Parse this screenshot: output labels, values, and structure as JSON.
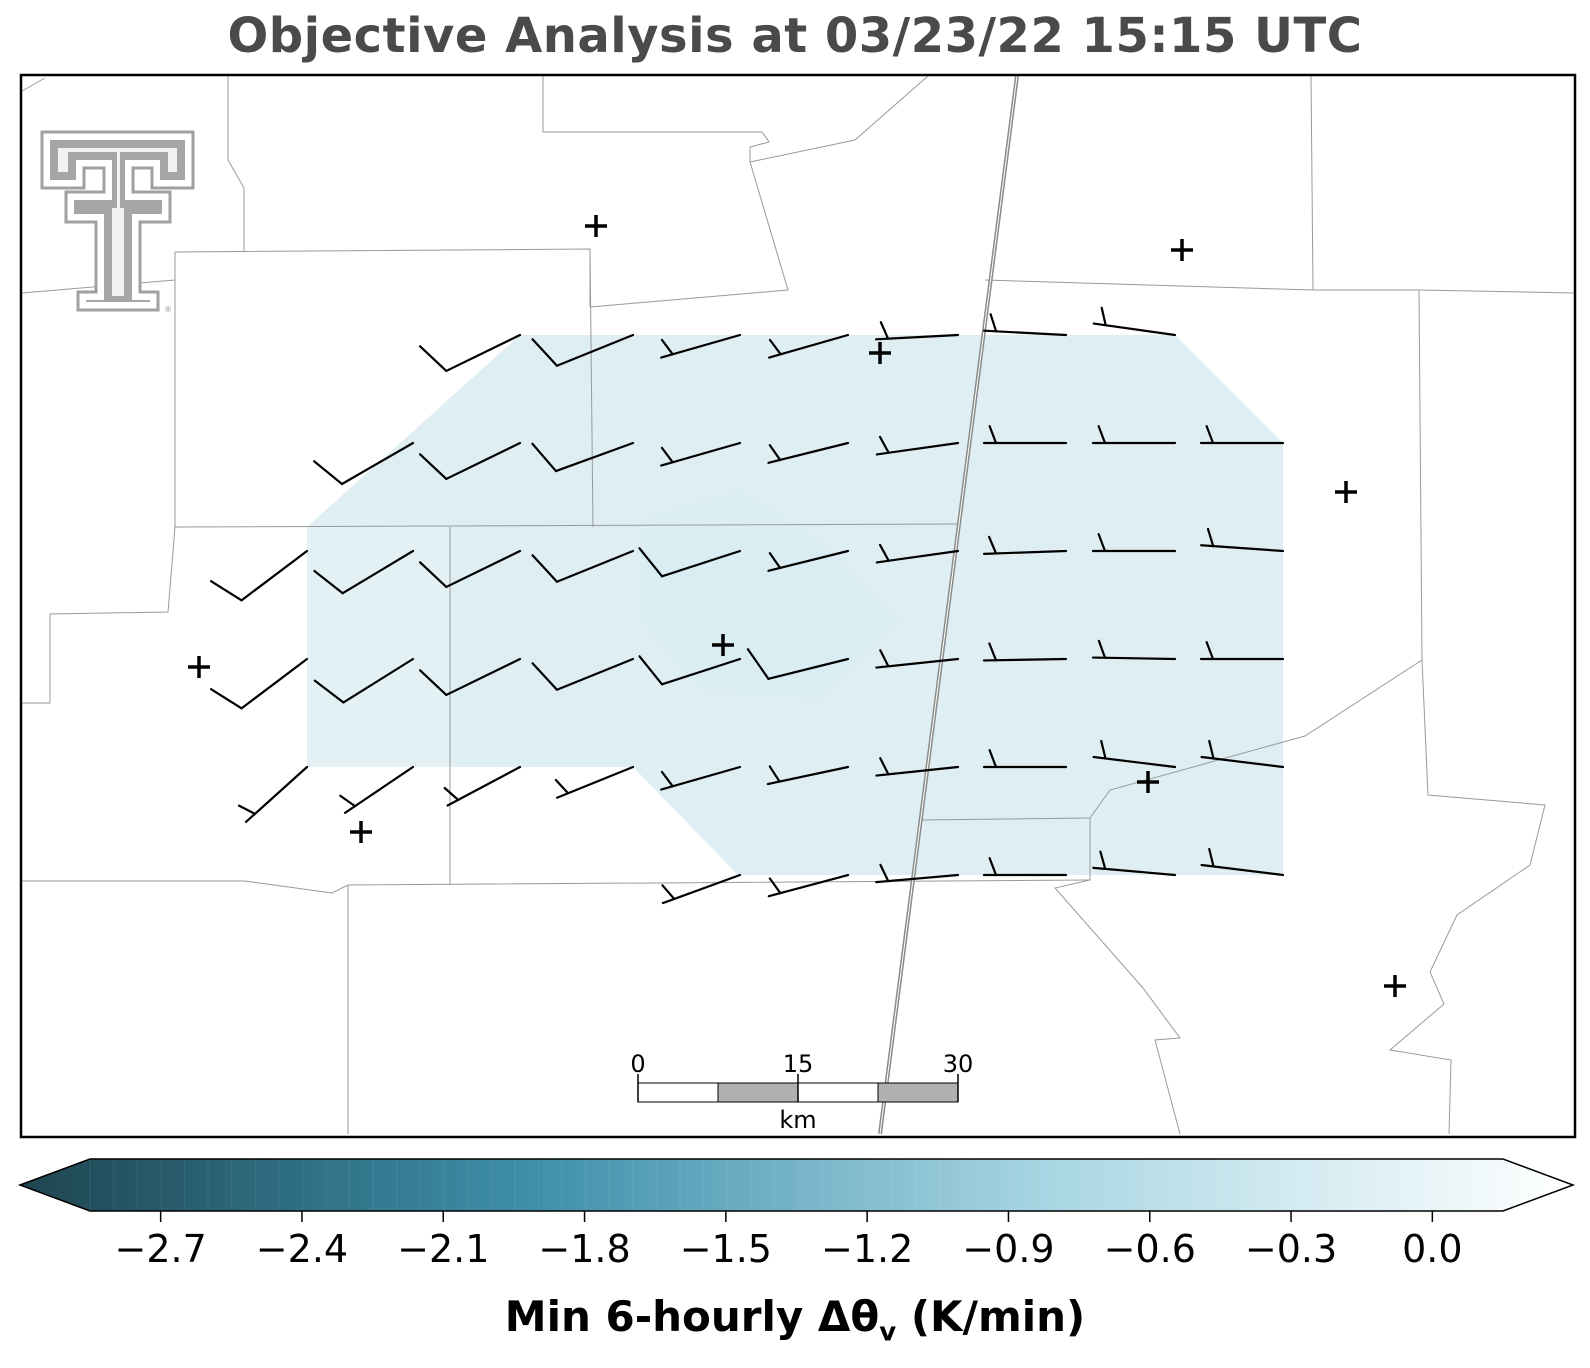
{
  "title": "Objective Analysis at 03/23/22 15:15 UTC",
  "logo": {
    "name": "texas-tech-double-t-logo",
    "text": "TT",
    "color": "#9e9e9e"
  },
  "scale_bar": {
    "labels": [
      "0",
      "15",
      "30"
    ],
    "unit": "km"
  },
  "colorbar": {
    "label_main": "Min 6-hourly Δθ",
    "label_sub": "v",
    "label_units": " (K/min)",
    "min": -2.85,
    "max": 0.15,
    "ticks": [
      "−2.7",
      "−2.4",
      "−2.1",
      "−1.8",
      "−1.5",
      "−1.2",
      "−0.9",
      "−0.6",
      "−0.3",
      "0.0"
    ],
    "tick_values": [
      -2.7,
      -2.4,
      -2.1,
      -1.8,
      -1.5,
      -1.2,
      -0.9,
      -0.6,
      -0.3,
      0.0
    ],
    "colors": [
      "#1f4450",
      "#2e6c80",
      "#3f90aa",
      "#76b4c8",
      "#a9d6e3",
      "#d6ecf2",
      "#ffffff"
    ],
    "extend": "both"
  },
  "analysis_field": {
    "approx_value": -0.2,
    "fill_color": "#deeef3"
  },
  "station_marker": "plus-icon",
  "wind_barbs_description": "Gridded wind barbs (≈10 kt half/full barbs)"
}
